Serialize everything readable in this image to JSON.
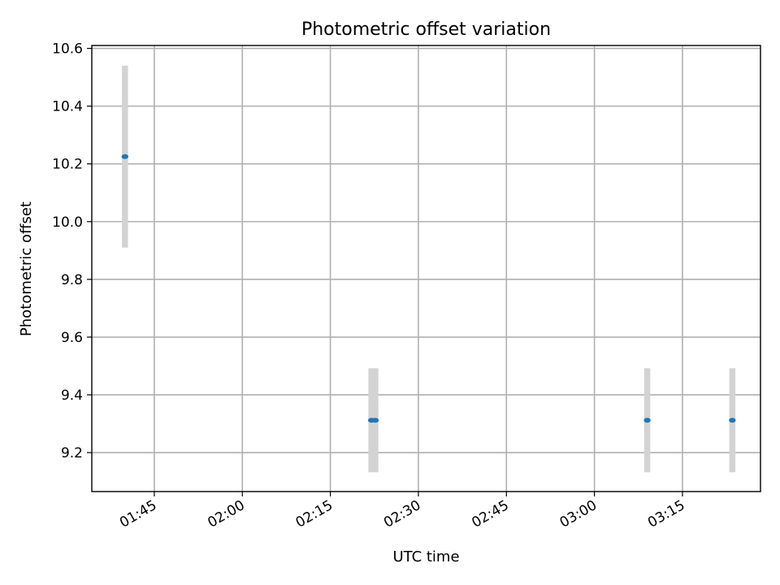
{
  "chart_data": {
    "type": "scatter",
    "title": "Photometric offset variation",
    "xlabel": "UTC time",
    "ylabel": "Photometric offset",
    "x_ticks": [
      "01:45",
      "02:00",
      "02:15",
      "02:30",
      "02:45",
      "03:00",
      "03:15"
    ],
    "x_tick_minutes": [
      105,
      120,
      135,
      150,
      165,
      180,
      195
    ],
    "y_ticks": [
      "9.2",
      "9.4",
      "9.6",
      "9.8",
      "10.0",
      "10.2",
      "10.4",
      "10.6"
    ],
    "y_tick_values": [
      9.2,
      9.4,
      9.6,
      9.8,
      10.0,
      10.2,
      10.4,
      10.6
    ],
    "xlim": [
      "01:34:21",
      "03:28:18"
    ],
    "ylim": [
      9.065,
      10.61
    ],
    "grid": true,
    "marker_color": "#1f77b4",
    "errorbar_color": "#d3d3d3",
    "points": [
      {
        "time": "01:40:00",
        "value": 10.225,
        "error": 0.315
      },
      {
        "time": "02:22:00",
        "value": 9.312,
        "error": 0.18
      },
      {
        "time": "02:22:40",
        "value": 9.312,
        "error": 0.18
      },
      {
        "time": "03:09:00",
        "value": 9.312,
        "error": 0.18
      },
      {
        "time": "03:23:30",
        "value": 9.312,
        "error": 0.18
      }
    ]
  }
}
